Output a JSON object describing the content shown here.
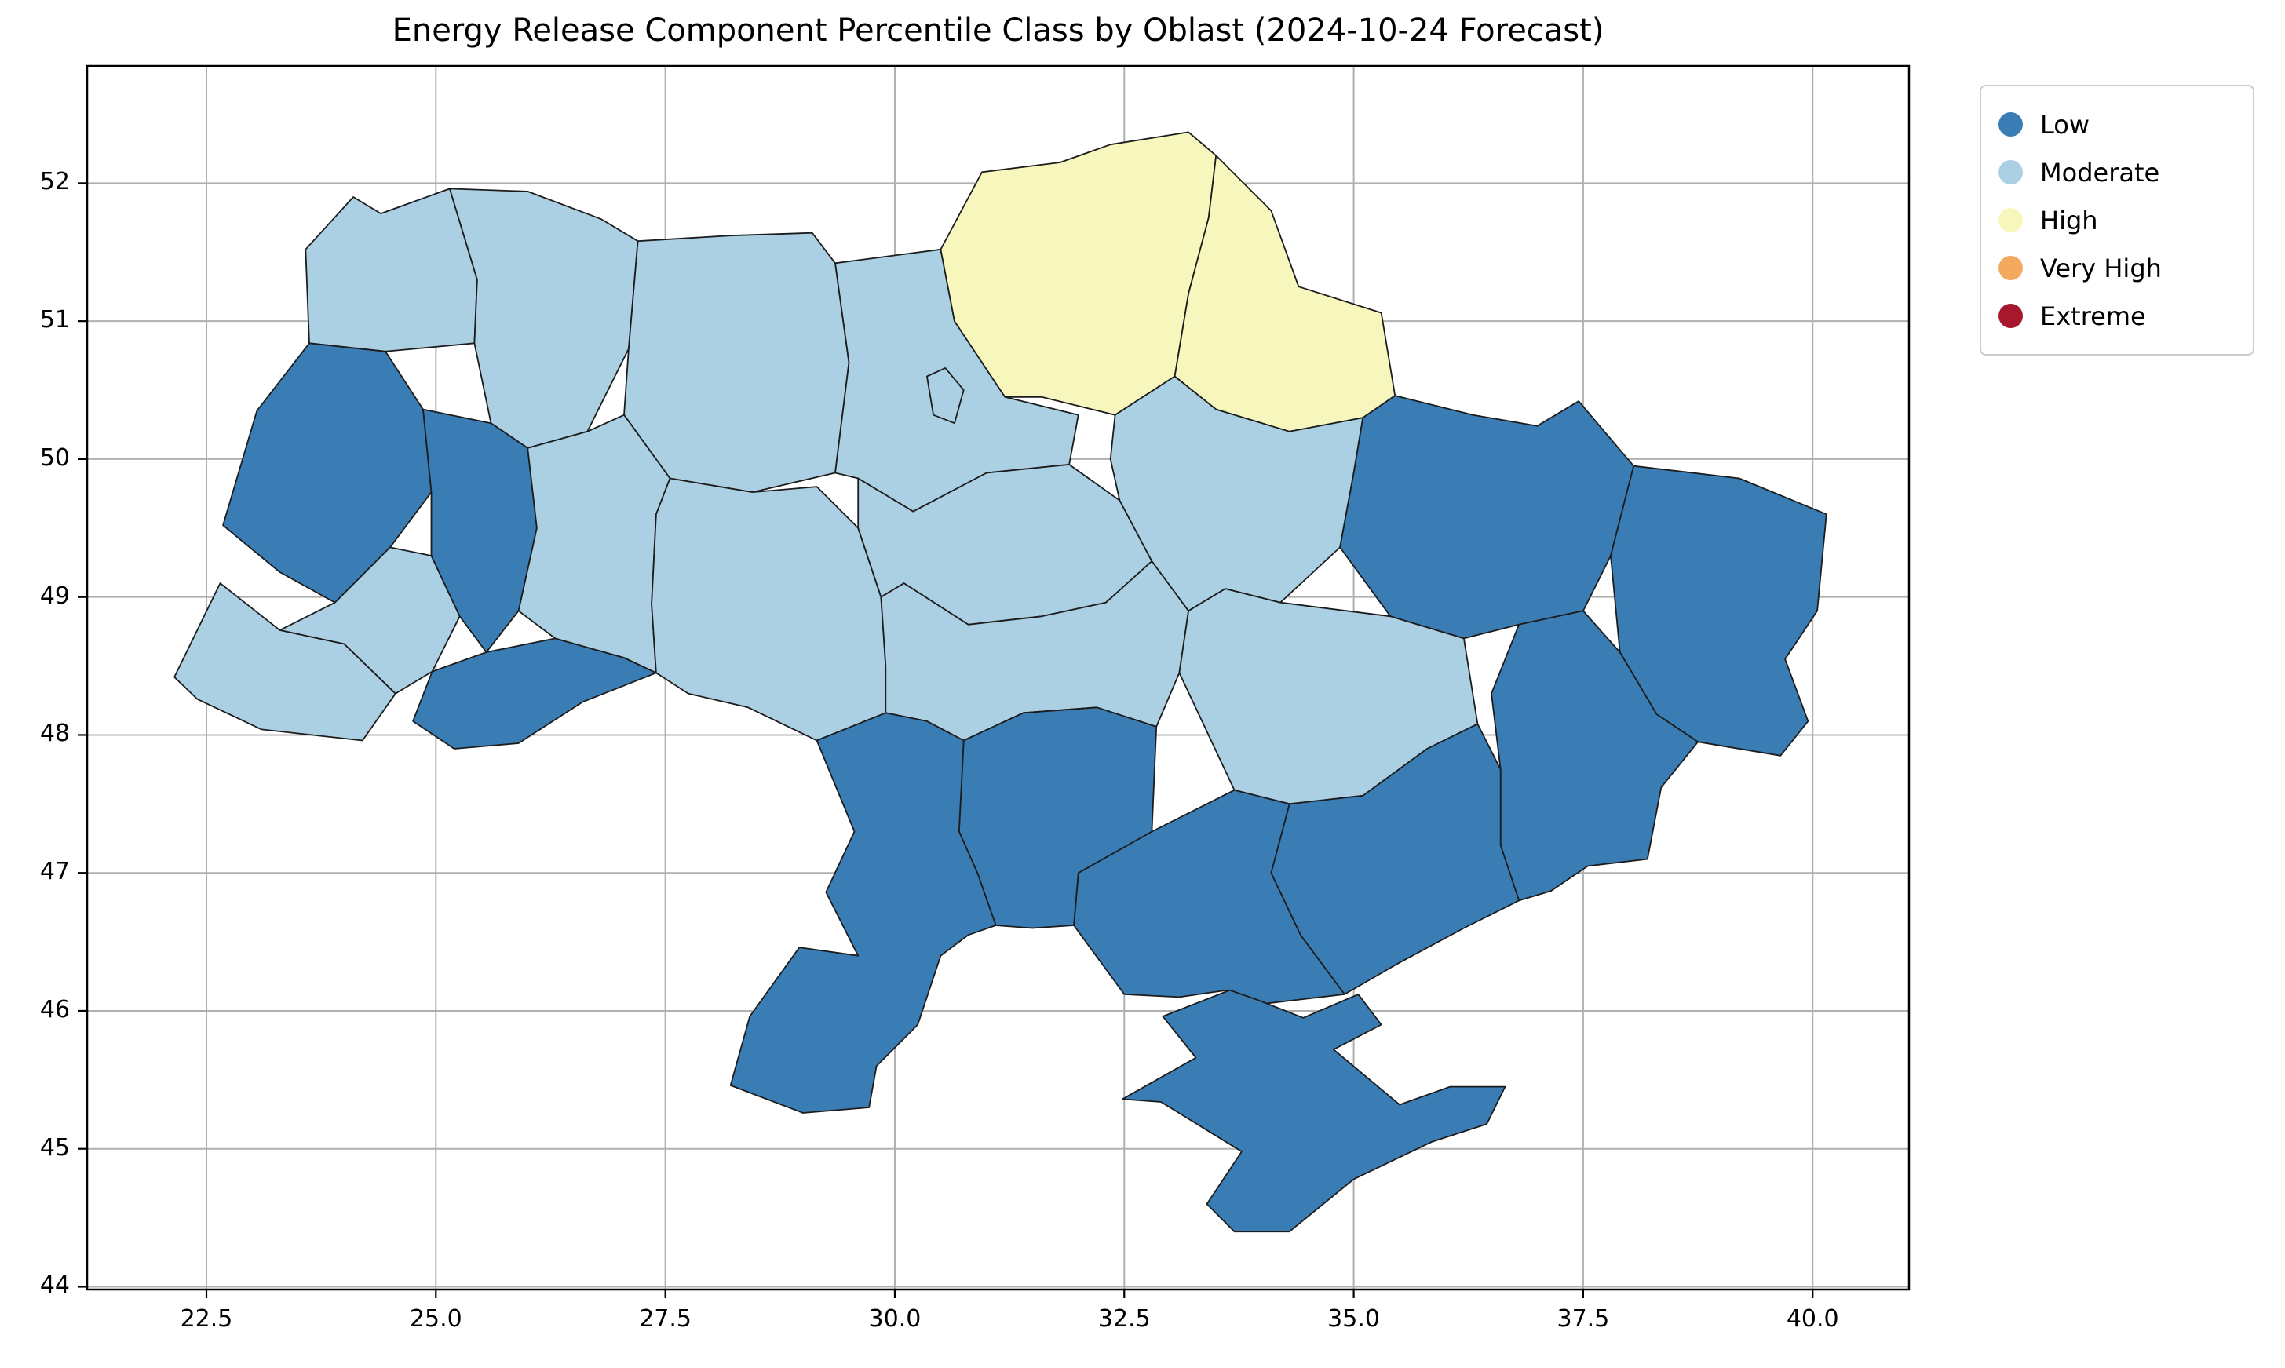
{
  "figure": {
    "title": "Energy Release Component Percentile Class by Oblast (2024-10-24 Forecast)",
    "background": "#ffffff"
  },
  "axes": {
    "x_ticks": [
      "22.5",
      "25.0",
      "27.5",
      "30.0",
      "32.5",
      "35.0",
      "37.5",
      "40.0"
    ],
    "y_ticks": [
      "44",
      "45",
      "46",
      "47",
      "48",
      "49",
      "50",
      "51",
      "52"
    ],
    "grid_color": "#b0b0b0",
    "spine_color": "#000000"
  },
  "legend": {
    "position": "upper right outside",
    "entries": [
      {
        "label": "Low",
        "color": "#3a7db5"
      },
      {
        "label": "Moderate",
        "color": "#abd0e4"
      },
      {
        "label": "High",
        "color": "#f7f7bd"
      },
      {
        "label": "Very High",
        "color": "#f5a95f"
      },
      {
        "label": "Extreme",
        "color": "#a7182e"
      }
    ]
  },
  "chart_data": {
    "type": "choropleth",
    "title": "Energy Release Component Percentile Class by Oblast (2024-10-24 Forecast)",
    "region_level": "oblast",
    "country": "Ukraine",
    "xlim": [
      21.2,
      41.05
    ],
    "ylim": [
      43.98,
      52.85
    ],
    "x_ticks": [
      22.5,
      25.0,
      27.5,
      30.0,
      32.5,
      35.0,
      37.5,
      40.0
    ],
    "y_ticks": [
      44,
      45,
      46,
      47,
      48,
      49,
      50,
      51,
      52
    ],
    "grid": true,
    "classes": [
      "Low",
      "Moderate",
      "High",
      "Very High",
      "Extreme"
    ],
    "class_colors": {
      "Low": "#3a7db5",
      "Moderate": "#abd0e4",
      "High": "#f7f7bd",
      "Very High": "#f5a95f",
      "Extreme": "#a7182e"
    },
    "regions": [
      {
        "name": "Volyn",
        "class": "Moderate"
      },
      {
        "name": "Rivne",
        "class": "Moderate"
      },
      {
        "name": "Zhytomyr",
        "class": "Moderate"
      },
      {
        "name": "Kyiv",
        "class": "Moderate"
      },
      {
        "name": "Kyiv City",
        "class": "Moderate"
      },
      {
        "name": "Chernihiv",
        "class": "High"
      },
      {
        "name": "Sumy",
        "class": "High"
      },
      {
        "name": "Lviv",
        "class": "Low"
      },
      {
        "name": "Zakarpattia",
        "class": "Moderate"
      },
      {
        "name": "Ivano-Frankivsk",
        "class": "Moderate"
      },
      {
        "name": "Ternopil",
        "class": "Low"
      },
      {
        "name": "Chernivtsi",
        "class": "Low"
      },
      {
        "name": "Khmelnytskyi",
        "class": "Moderate"
      },
      {
        "name": "Vinnytsia",
        "class": "Moderate"
      },
      {
        "name": "Cherkasy",
        "class": "Moderate"
      },
      {
        "name": "Kirovohrad",
        "class": "Moderate"
      },
      {
        "name": "Poltava",
        "class": "Moderate"
      },
      {
        "name": "Kharkiv",
        "class": "Low"
      },
      {
        "name": "Luhansk",
        "class": "Low"
      },
      {
        "name": "Donetsk",
        "class": "Low"
      },
      {
        "name": "Dnipropetrovsk",
        "class": "Moderate"
      },
      {
        "name": "Zaporizhzhia",
        "class": "Low"
      },
      {
        "name": "Kherson",
        "class": "Low"
      },
      {
        "name": "Mykolaiv",
        "class": "Low"
      },
      {
        "name": "Odesa",
        "class": "Low"
      },
      {
        "name": "Crimea",
        "class": "Low"
      }
    ]
  }
}
